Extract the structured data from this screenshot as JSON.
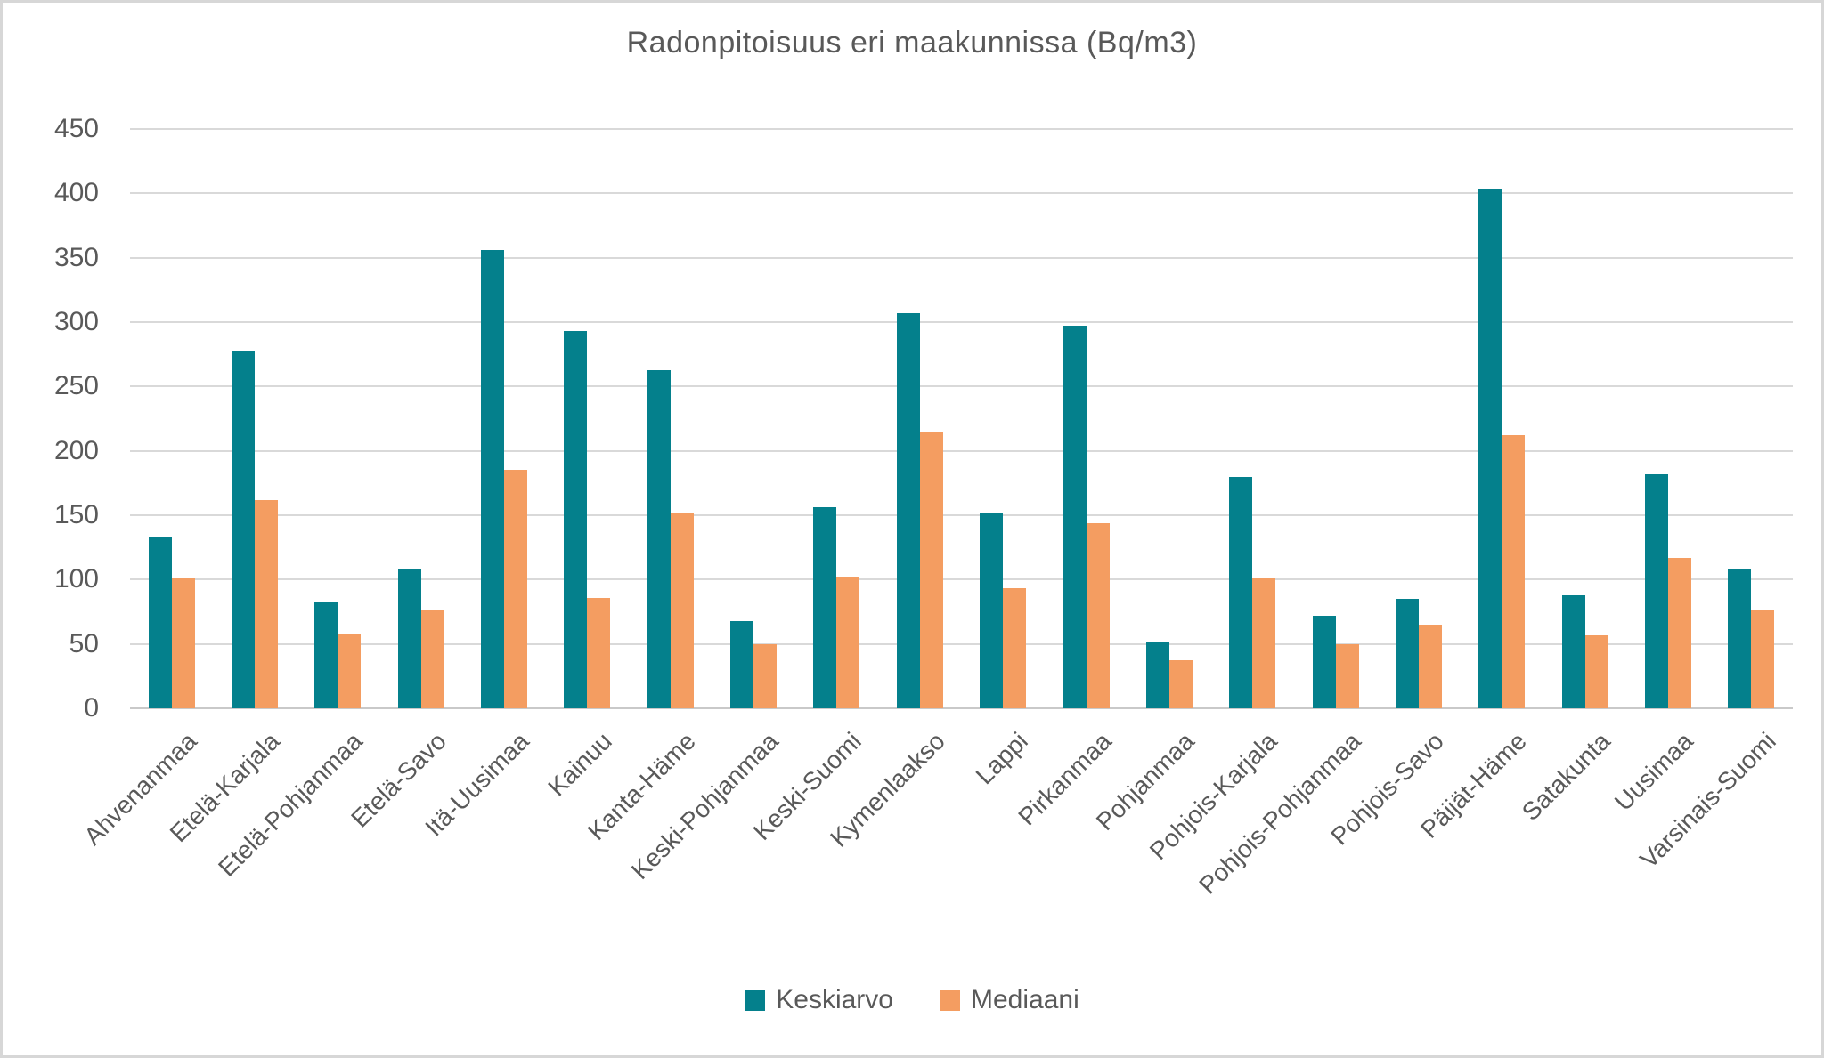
{
  "page": {
    "background_color": "#ffffff",
    "border_color": "#d7d7d7"
  },
  "chart_data": {
    "type": "bar",
    "title": "Radonpitoisuus eri maakunnissa (Bq/m3)",
    "categories": [
      "Ahvenanmaa",
      "Etelä-Karjala",
      "Etelä-Pohjanmaa",
      "Etelä-Savo",
      "Itä-Uusimaa",
      "Kainuu",
      "Kanta-Häme",
      "Keski-Pohjanmaa",
      "Keski-Suomi",
      "Kymenlaakso",
      "Lappi",
      "Pirkanmaa",
      "Pohjanmaa",
      "Pohjois-Karjala",
      "Pohjois-Pohjanmaa",
      "Pohjois-Savo",
      "Päijät-Häme",
      "Satakunta",
      "Uusimaa",
      "Varsinais-Suomi"
    ],
    "series": [
      {
        "name": "Keskiarvo",
        "color": "#04808c",
        "values": [
          133,
          277,
          83,
          108,
          356,
          293,
          263,
          68,
          156,
          307,
          152,
          297,
          52,
          180,
          72,
          85,
          404,
          88,
          182,
          108
        ]
      },
      {
        "name": "Mediaani",
        "color": "#f49d61",
        "values": [
          101,
          162,
          58,
          76,
          185,
          86,
          152,
          50,
          102,
          215,
          93,
          144,
          37,
          101,
          50,
          65,
          212,
          57,
          117,
          76
        ]
      }
    ],
    "xlabel": "",
    "ylabel": "",
    "ylim": [
      0,
      450
    ],
    "y_ticks": [
      0,
      50,
      100,
      150,
      200,
      250,
      300,
      350,
      400,
      450
    ],
    "grid": true,
    "legend_position": "bottom",
    "text_color": "#595959",
    "grid_color": "#d9d9d9",
    "axis_line_color": "#c9c9c9"
  }
}
